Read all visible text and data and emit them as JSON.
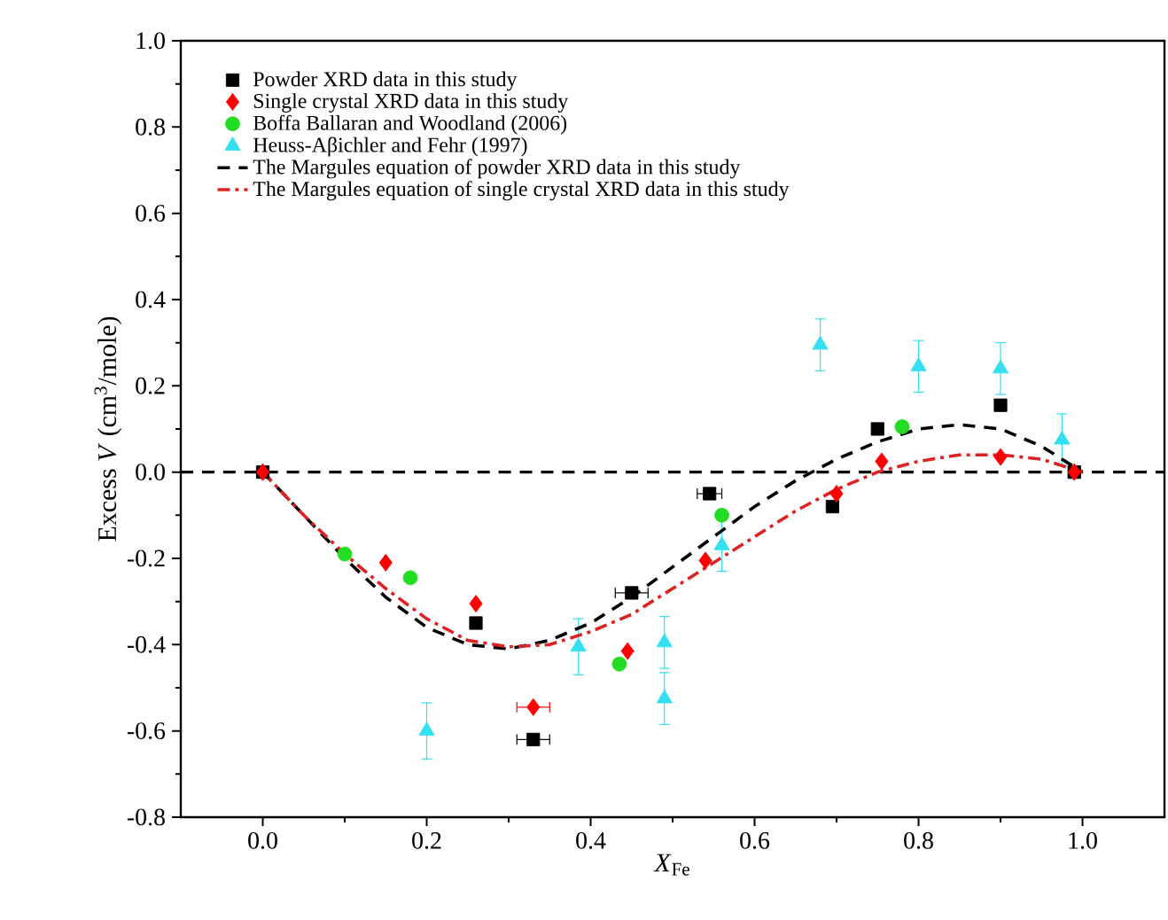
{
  "chart_data": {
    "type": "scatter",
    "xlabel": "*X*$_{Fe}$",
    "ylabel": "Excess *V* (cm$^{3}$/mole)",
    "xlim": [
      -0.1,
      1.1
    ],
    "ylim": [
      -0.8,
      1.0
    ],
    "xticks": [
      {
        "value": 0,
        "label": "0.0"
      },
      {
        "value": 0.2,
        "label": "0.2"
      },
      {
        "value": 0.4,
        "label": "0.4"
      },
      {
        "value": 0.6,
        "label": "0.6"
      },
      {
        "value": 0.8,
        "label": "0.8"
      },
      {
        "value": 1,
        "label": "1.0"
      }
    ],
    "yticks": [
      {
        "value": -0.8,
        "label": "-0.8"
      },
      {
        "value": -0.6,
        "label": "-0.6"
      },
      {
        "value": -0.4,
        "label": "-0.4"
      },
      {
        "value": -0.2,
        "label": "-0.2"
      },
      {
        "value": 0,
        "label": "0.0"
      },
      {
        "value": 0.2,
        "label": "0.2"
      },
      {
        "value": 0.4,
        "label": "0.4"
      },
      {
        "value": 0.6,
        "label": "0.6"
      },
      {
        "value": 0.8,
        "label": "0.8"
      },
      {
        "value": 1,
        "label": "1.0"
      }
    ],
    "legend": "top left",
    "grid": false,
    "ref_lines": [
      {
        "axis": "y",
        "value": 0,
        "color": "#000000",
        "line_style": "dashed"
      }
    ],
    "series": [
      {
        "name": "Powder XRD data in this study",
        "marker": "square",
        "color": "#000000",
        "x": [
          0,
          0.26,
          0.33,
          0.45,
          0.545,
          0.695,
          0.75,
          0.9,
          0.99
        ],
        "values": [
          0,
          -0.35,
          -0.62,
          -0.28,
          -0.05,
          -0.08,
          0.1,
          0.155,
          0
        ],
        "xerrors": [
          null,
          null,
          0.02,
          0.02,
          0.015,
          null,
          null,
          null,
          null
        ]
      },
      {
        "name": "Single crystal XRD data in this study",
        "marker": "diamond",
        "color": "#ff0000",
        "x": [
          0,
          0.15,
          0.26,
          0.33,
          0.445,
          0.54,
          0.7,
          0.755,
          0.9,
          0.99
        ],
        "values": [
          0,
          -0.21,
          -0.305,
          -0.545,
          -0.415,
          -0.205,
          -0.05,
          0.025,
          0.035,
          0
        ],
        "xerrors": [
          null,
          null,
          null,
          0.02,
          null,
          null,
          null,
          null,
          null,
          null
        ]
      },
      {
        "name": "Boffa Ballaran and Woodland (2006)",
        "marker": "circle",
        "color": "#22dd22",
        "x": [
          0.1,
          0.18,
          0.435,
          0.56,
          0.78
        ],
        "values": [
          -0.19,
          -0.245,
          -0.445,
          -0.1,
          0.105
        ]
      },
      {
        "name": "Heuss-Aβichler and Fehr (1997)",
        "marker": "triangle",
        "color": "#33e0f0",
        "x": [
          0.2,
          0.385,
          0.49,
          0.49,
          0.56,
          0.68,
          0.8,
          0.9,
          0.975
        ],
        "values": [
          -0.6,
          -0.405,
          -0.395,
          -0.525,
          -0.17,
          0.295,
          0.245,
          0.24,
          0.075
        ],
        "errors": [
          0.065,
          0.065,
          0.06,
          0.06,
          0.06,
          0.06,
          0.06,
          0.06,
          0.06
        ]
      },
      {
        "name": "The Margules equation of powder XRD data in this study",
        "type": "line",
        "marker": "none",
        "line_style": "dashed",
        "color": "#000000",
        "x": [
          0,
          0.05,
          0.1,
          0.15,
          0.2,
          0.25,
          0.3,
          0.35,
          0.4,
          0.45,
          0.5,
          0.55,
          0.6,
          0.65,
          0.7,
          0.75,
          0.8,
          0.85,
          0.9,
          0.95,
          1.0
        ],
        "values": [
          0,
          -0.1,
          -0.2,
          -0.29,
          -0.36,
          -0.4,
          -0.41,
          -0.39,
          -0.35,
          -0.29,
          -0.22,
          -0.15,
          -0.08,
          -0.02,
          0.03,
          0.07,
          0.1,
          0.11,
          0.1,
          0.06,
          0
        ]
      },
      {
        "name": "The Margules equation of single crystal XRD data in this study",
        "type": "line",
        "marker": "none",
        "line_style": "dashdot",
        "color": "#dd2222",
        "x": [
          0,
          0.05,
          0.1,
          0.15,
          0.2,
          0.25,
          0.3,
          0.35,
          0.4,
          0.45,
          0.5,
          0.55,
          0.6,
          0.65,
          0.7,
          0.75,
          0.8,
          0.85,
          0.9,
          0.95,
          1.0
        ],
        "values": [
          0,
          -0.1,
          -0.19,
          -0.27,
          -0.34,
          -0.39,
          -0.405,
          -0.4,
          -0.37,
          -0.33,
          -0.27,
          -0.21,
          -0.15,
          -0.09,
          -0.04,
          0,
          0.025,
          0.04,
          0.04,
          0.03,
          0
        ]
      }
    ]
  }
}
